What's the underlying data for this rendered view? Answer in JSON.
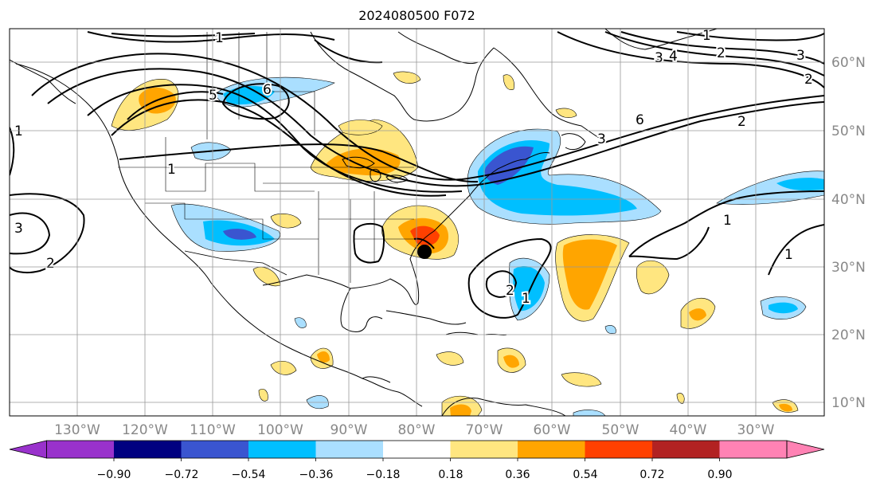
{
  "title": "2024080500 F072",
  "longitude_labels": [
    "130°W",
    "120°W",
    "110°W",
    "100°W",
    "90°W",
    "80°W",
    "70°W",
    "60°W",
    "50°W",
    "40°W",
    "30°W"
  ],
  "latitude_labels": [
    "60°N",
    "50°N",
    "40°N",
    "30°N",
    "20°N",
    "10°N"
  ],
  "colorbar": {
    "colors": [
      "#9932cc",
      "#000080",
      "#3a55d0",
      "#00bfff",
      "#aadfff",
      "#ffffff",
      "#ffe680",
      "#ffa500",
      "#ff4000",
      "#b22222",
      "#ff82b4"
    ],
    "tick_labels": [
      "−0.90",
      "−0.72",
      "−0.54",
      "−0.36",
      "−0.18",
      "0.18",
      "0.36",
      "0.54",
      "0.72",
      "0.90"
    ]
  },
  "contour_labels": [
    "1",
    "2",
    "3",
    "4",
    "5",
    "6"
  ],
  "colors": {
    "grid": "#999999",
    "coast": "#000000",
    "contour": "#000000",
    "axis_label": "#888888"
  }
}
